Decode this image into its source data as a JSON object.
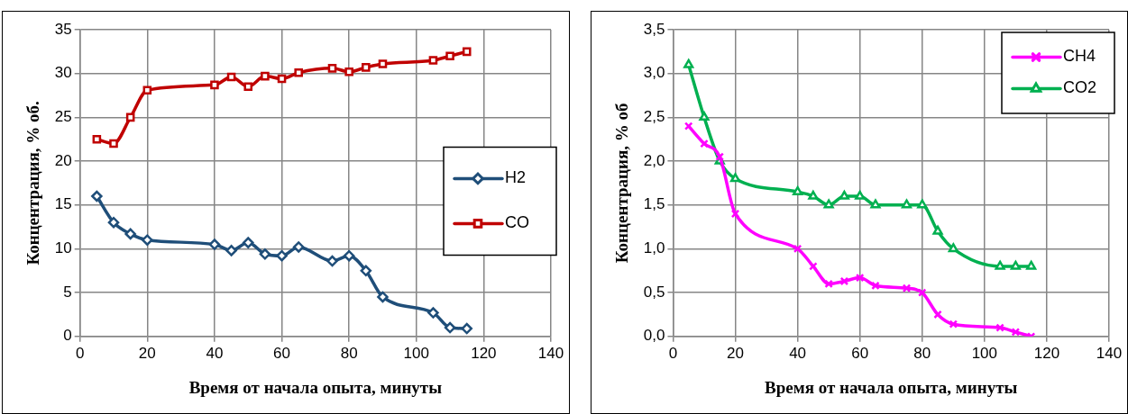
{
  "chart_data": [
    {
      "type": "line",
      "xlabel": "Время от начала опыта, минуты",
      "ylabel": "Концентрация, % об.",
      "x": [
        5,
        10,
        15,
        20,
        40,
        45,
        50,
        55,
        60,
        65,
        75,
        80,
        85,
        90,
        105,
        110,
        115
      ],
      "xlim": [
        0,
        140
      ],
      "xticks": [
        0,
        20,
        40,
        60,
        80,
        100,
        120,
        140
      ],
      "ylim": [
        0,
        35
      ],
      "yticks": [
        0,
        5,
        10,
        15,
        20,
        25,
        30,
        35
      ],
      "grid": true,
      "legend": "right",
      "line_style": "solid",
      "series": [
        {
          "name": "H2",
          "color": "#1f4e79",
          "marker": "diamond",
          "values": [
            16,
            13,
            11.7,
            11,
            10.5,
            9.8,
            10.7,
            9.4,
            9.2,
            10.2,
            8.6,
            9.2,
            7.5,
            4.5,
            2.7,
            1,
            0.9
          ]
        },
        {
          "name": "CO",
          "color": "#c00000",
          "marker": "square",
          "values": [
            22.5,
            22,
            25,
            28.1,
            28.7,
            29.6,
            28.5,
            29.7,
            29.4,
            30.1,
            30.6,
            30.2,
            30.7,
            31.1,
            31.5,
            32,
            32.5
          ]
        }
      ]
    },
    {
      "type": "line",
      "xlabel": "Время от начала опыта, минуты",
      "ylabel": "Концентрация, % об",
      "x": [
        5,
        10,
        15,
        20,
        40,
        45,
        50,
        55,
        60,
        65,
        75,
        80,
        85,
        90,
        105,
        110,
        115
      ],
      "xlim": [
        0,
        140
      ],
      "xticks": [
        0,
        20,
        40,
        60,
        80,
        100,
        120,
        140
      ],
      "ylim": [
        0,
        3.5
      ],
      "yticks": [
        {
          "value": 0,
          "label": "0,0"
        },
        {
          "value": 0.5,
          "label": "0,5"
        },
        {
          "value": 1,
          "label": "1,0"
        },
        {
          "value": 1.5,
          "label": "1,5"
        },
        {
          "value": 2,
          "label": "2,0"
        },
        {
          "value": 2.5,
          "label": "2,5"
        },
        {
          "value": 3,
          "label": "3,0"
        },
        {
          "value": 3.5,
          "label": "3,5"
        }
      ],
      "grid": true,
      "legend": "top right",
      "line_style": "solid",
      "series": [
        {
          "name": "CH4",
          "color": "#ff00ff",
          "marker": "cross",
          "values": [
            2.4,
            2.2,
            2.05,
            1.4,
            1.0,
            0.8,
            0.6,
            0.63,
            0.67,
            0.58,
            0.55,
            0.5,
            0.25,
            0.14,
            0.1,
            0.05,
            0
          ]
        },
        {
          "name": "CO2",
          "color": "#00b050",
          "marker": "triangle",
          "values": [
            3.1,
            2.5,
            2.0,
            1.8,
            1.65,
            1.6,
            1.5,
            1.6,
            1.6,
            1.5,
            1.5,
            1.5,
            1.2,
            1.0,
            0.8,
            0.8,
            0.8
          ]
        }
      ]
    }
  ]
}
